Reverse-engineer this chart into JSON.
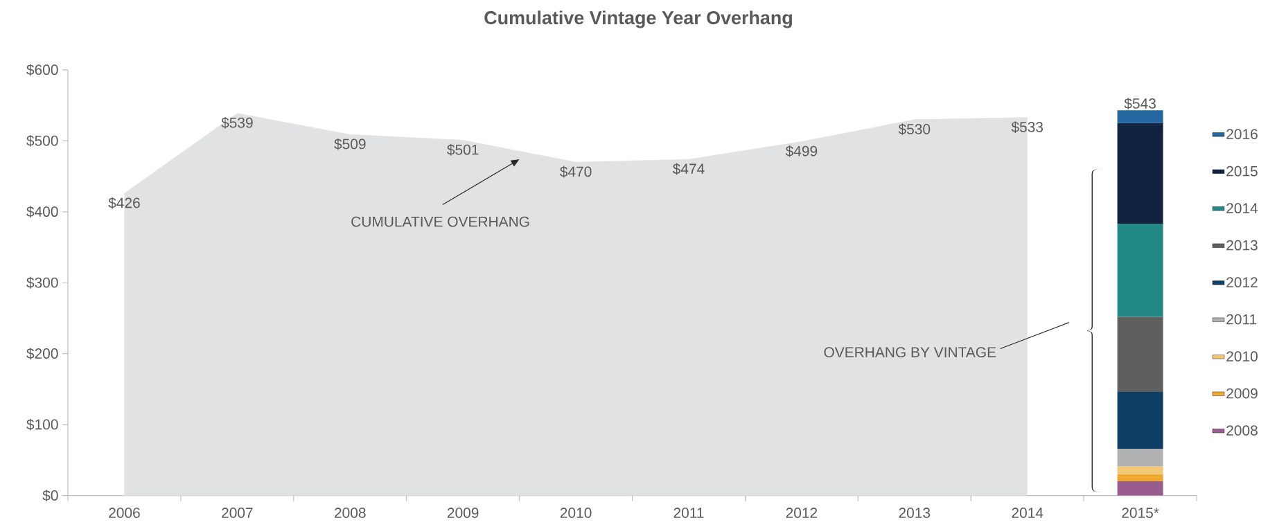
{
  "chart_data": {
    "type": "area",
    "title": "Cumulative Vintage Year Overhang",
    "categories": [
      "2006",
      "2007",
      "2008",
      "2009",
      "2010",
      "2011",
      "2012",
      "2013",
      "2014",
      "2015*"
    ],
    "ylim": [
      0,
      600
    ],
    "yticks": [
      {
        "value": 0,
        "label": "$0"
      },
      {
        "value": 100,
        "label": "$100"
      },
      {
        "value": 200,
        "label": "$200"
      },
      {
        "value": 300,
        "label": "$300"
      },
      {
        "value": 400,
        "label": "$400"
      },
      {
        "value": 500,
        "label": "$500"
      },
      {
        "value": 600,
        "label": "$600"
      }
    ],
    "stacked": true,
    "legend": "right",
    "grid": false,
    "series": [
      {
        "color": "#e1e2e4",
        "values": [
          426,
          539,
          509,
          501,
          470,
          474,
          499,
          530,
          533,
          null
        ],
        "value_labels": [
          "$426",
          "$539",
          "$509",
          "$501",
          "$470",
          "$474",
          "$499",
          "$530",
          "$533",
          null
        ]
      },
      {
        "type": "bar",
        "name": "2008",
        "color": "#985c8e",
        "values": [
          null,
          null,
          null,
          null,
          null,
          null,
          null,
          null,
          null,
          20
        ]
      },
      {
        "type": "bar",
        "name": "2009",
        "color": "#f0a830",
        "values": [
          null,
          null,
          null,
          null,
          null,
          null,
          null,
          null,
          null,
          10
        ]
      },
      {
        "type": "bar",
        "name": "2010",
        "color": "#f2c877",
        "values": [
          null,
          null,
          null,
          null,
          null,
          null,
          null,
          null,
          null,
          11
        ]
      },
      {
        "type": "bar",
        "name": "2011",
        "color": "#b1b1b1",
        "values": [
          null,
          null,
          null,
          null,
          null,
          null,
          null,
          null,
          null,
          25
        ]
      },
      {
        "type": "bar",
        "name": "2012",
        "color": "#0d3f66",
        "values": [
          null,
          null,
          null,
          null,
          null,
          null,
          null,
          null,
          null,
          80
        ]
      },
      {
        "type": "bar",
        "name": "2013",
        "color": "#5f5f5f",
        "values": [
          null,
          null,
          null,
          null,
          null,
          null,
          null,
          null,
          null,
          106
        ]
      },
      {
        "type": "bar",
        "name": "2014",
        "color": "#218884",
        "values": [
          null,
          null,
          null,
          null,
          null,
          null,
          null,
          null,
          null,
          131
        ]
      },
      {
        "type": "bar",
        "name": "2015",
        "color": "#11233f",
        "values": [
          null,
          null,
          null,
          null,
          null,
          null,
          null,
          null,
          null,
          142
        ]
      },
      {
        "type": "bar",
        "name": "2016",
        "color": "#2366a0",
        "values": [
          null,
          null,
          null,
          null,
          null,
          null,
          null,
          null,
          null,
          18
        ]
      }
    ],
    "totals": [
      null,
      null,
      null,
      null,
      null,
      null,
      null,
      null,
      null,
      "$543"
    ],
    "annotations": [
      "CUMULATIVE OVERHANG",
      "OVERHANG BY VINTAGE"
    ]
  }
}
